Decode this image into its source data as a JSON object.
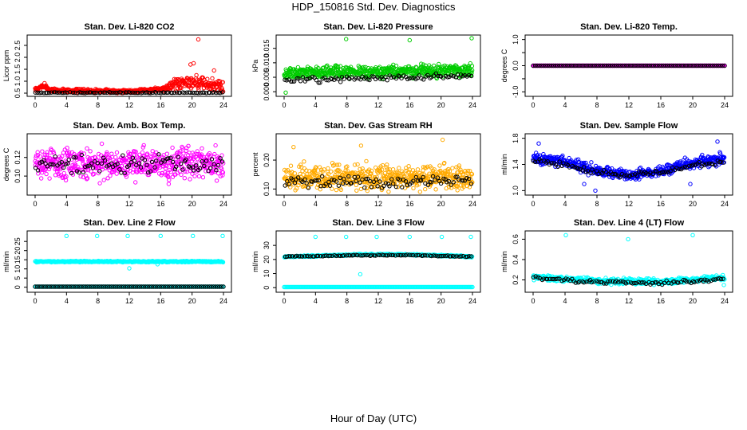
{
  "page": {
    "title": "HDP_150816  Std. Dev. Diagnostics",
    "xlabel": "Hour of Day (UTC)"
  },
  "chart_data": [
    {
      "type": "scatter",
      "title": "Stan. Dev. Li-820 CO2",
      "ylabel": "Licor ppm",
      "xlim": [
        0,
        24
      ],
      "ylim": [
        0.5,
        2.8
      ],
      "xticks": [
        0,
        4,
        8,
        12,
        16,
        20,
        24
      ],
      "yticks": [
        0.5,
        1.0,
        1.5,
        2.0,
        2.5
      ],
      "ytick_labels": [
        "0.5",
        "1.0",
        "1.5",
        "2.0",
        "2.5"
      ],
      "series": [
        {
          "color": "#ff0000",
          "pattern": {
            "kind": "band",
            "n": 520,
            "base": [
              [
                0,
                0.62
              ],
              [
                1,
                0.8
              ],
              [
                2,
                0.62
              ],
              [
                12,
                0.58
              ],
              [
                16,
                0.66
              ],
              [
                18,
                0.9
              ],
              [
                20,
                1.0
              ],
              [
                22,
                0.85
              ],
              [
                24,
                0.8
              ]
            ],
            "spread": [
              [
                0,
                0.12
              ],
              [
                16,
                0.1
              ],
              [
                18,
                0.4
              ],
              [
                24,
                0.45
              ]
            ]
          },
          "extra": [
            [
              20.8,
              2.75
            ],
            [
              20.2,
              1.75
            ],
            [
              19.8,
              1.7
            ],
            [
              18.4,
              1.05
            ],
            [
              22.8,
              1.45
            ],
            [
              1.2,
              0.92
            ]
          ]
        },
        {
          "color": "#000000",
          "pattern": {
            "kind": "band",
            "n": 95,
            "base": [
              [
                0,
                0.52
              ],
              [
                24,
                0.52
              ]
            ],
            "spread": [
              [
                0,
                0.03
              ],
              [
                24,
                0.03
              ]
            ]
          }
        }
      ]
    },
    {
      "type": "scatter",
      "title": "Stan. Dev. Li-820 Pressure",
      "ylabel": "kPa",
      "xlim": [
        0,
        24
      ],
      "ylim": [
        -0.0005,
        0.0185
      ],
      "xticks": [
        0,
        4,
        8,
        12,
        16,
        20,
        24
      ],
      "yticks": [
        0.0,
        0.005,
        0.01,
        0.015
      ],
      "ytick_labels": [
        "0.000",
        "0.005",
        "0.010",
        "0.015"
      ],
      "series": [
        {
          "color": "#00cc00",
          "pattern": {
            "kind": "band",
            "n": 560,
            "base": [
              [
                0,
                0.0065
              ],
              [
                24,
                0.0075
              ]
            ],
            "spread": [
              [
                0,
                0.003
              ],
              [
                24,
                0.003
              ]
            ]
          },
          "extra": [
            [
              7.9,
              0.0182
            ],
            [
              16.0,
              0.0178
            ],
            [
              23.9,
              0.0185
            ],
            [
              0.2,
              -0.0003
            ]
          ]
        },
        {
          "color": "#000000",
          "pattern": {
            "kind": "band",
            "n": 95,
            "base": [
              [
                0,
                0.004
              ],
              [
                24,
                0.0055
              ]
            ],
            "spread": [
              [
                0,
                0.0015
              ],
              [
                24,
                0.0015
              ]
            ]
          }
        }
      ]
    },
    {
      "type": "scatter",
      "title": "Stan. Dev. Li-820 Temp.",
      "ylabel": "degrees C",
      "xlim": [
        0,
        24
      ],
      "ylim": [
        -1.05,
        1.05
      ],
      "xticks": [
        0,
        4,
        8,
        12,
        16,
        20,
        24
      ],
      "yticks": [
        -1.0,
        -0.5,
        0.0,
        0.5,
        1.0
      ],
      "ytick_labels": [
        "-1.0",
        "",
        "0.0",
        "",
        "1.0"
      ],
      "series": [
        {
          "color": "#ff00ff",
          "pattern": {
            "kind": "line",
            "n": 290,
            "y": 0.0
          }
        },
        {
          "color": "#000000",
          "pattern": {
            "kind": "line",
            "n": 95,
            "y": 0.0
          }
        }
      ]
    },
    {
      "type": "scatter",
      "title": "Stan. Dev. Amb. Box Temp.",
      "ylabel": "degrees C",
      "xlim": [
        0,
        24
      ],
      "ylim": [
        0.083,
        0.142
      ],
      "xticks": [
        0,
        4,
        8,
        12,
        16,
        20,
        24
      ],
      "yticks": [
        0.1,
        0.12
      ],
      "ytick_labels": [
        "0.10",
        "0.12"
      ],
      "series": [
        {
          "color": "#ff00ff",
          "pattern": {
            "kind": "band",
            "n": 560,
            "base": [
              [
                0,
                0.113
              ],
              [
                24,
                0.113
              ]
            ],
            "spread": [
              [
                0,
                0.024
              ],
              [
                24,
                0.024
              ]
            ]
          }
        },
        {
          "color": "#000000",
          "pattern": {
            "kind": "band",
            "n": 95,
            "base": [
              [
                0,
                0.113
              ],
              [
                24,
                0.113
              ]
            ],
            "spread": [
              [
                0,
                0.016
              ],
              [
                24,
                0.016
              ]
            ]
          }
        }
      ]
    },
    {
      "type": "scatter",
      "title": "Stan. Dev. Gas Stream RH",
      "ylabel": "percent",
      "xlim": [
        0,
        24
      ],
      "ylim": [
        0.09,
        0.28
      ],
      "xticks": [
        0,
        4,
        8,
        12,
        16,
        20,
        24
      ],
      "yticks": [
        0.1,
        0.2
      ],
      "ytick_labels": [
        "0.10",
        "0.20"
      ],
      "series": [
        {
          "color": "#ffaa00",
          "pattern": {
            "kind": "band",
            "n": 560,
            "base": [
              [
                0,
                0.14
              ],
              [
                24,
                0.14
              ]
            ],
            "spread": [
              [
                0,
                0.06
              ],
              [
                24,
                0.06
              ]
            ]
          },
          "extra": [
            [
              20.2,
              0.27
            ],
            [
              1.2,
              0.245
            ],
            [
              9.8,
              0.25
            ]
          ]
        },
        {
          "color": "#000000",
          "pattern": {
            "kind": "band",
            "n": 95,
            "base": [
              [
                0,
                0.125
              ],
              [
                24,
                0.13
              ]
            ],
            "spread": [
              [
                0,
                0.03
              ],
              [
                24,
                0.03
              ]
            ]
          }
        }
      ]
    },
    {
      "type": "scatter",
      "title": "Stan. Dev. Sample Flow",
      "ylabel": "ml/min",
      "xlim": [
        0,
        24
      ],
      "ylim": [
        0.98,
        1.82
      ],
      "xticks": [
        0,
        4,
        8,
        12,
        16,
        20,
        24
      ],
      "yticks": [
        1.0,
        1.4,
        1.8
      ],
      "ytick_labels": [
        "1.0",
        "1.4",
        "1.8"
      ],
      "series": [
        {
          "color": "#0000ff",
          "pattern": {
            "kind": "band",
            "n": 560,
            "base": [
              [
                0,
                1.5
              ],
              [
                4,
                1.45
              ],
              [
                8,
                1.3
              ],
              [
                12,
                1.24
              ],
              [
                16,
                1.3
              ],
              [
                20,
                1.42
              ],
              [
                24,
                1.5
              ]
            ],
            "spread": [
              [
                0,
                0.12
              ],
              [
                24,
                0.12
              ]
            ]
          },
          "extra": [
            [
              7.8,
              1.0
            ],
            [
              0.7,
              1.72
            ],
            [
              23.1,
              1.75
            ],
            [
              19.7,
              1.1
            ],
            [
              6.4,
              1.1
            ]
          ]
        },
        {
          "color": "#000000",
          "pattern": {
            "kind": "band",
            "n": 95,
            "base": [
              [
                0,
                1.45
              ],
              [
                4,
                1.4
              ],
              [
                8,
                1.28
              ],
              [
                12,
                1.24
              ],
              [
                16,
                1.28
              ],
              [
                20,
                1.38
              ],
              [
                24,
                1.45
              ]
            ],
            "spread": [
              [
                0,
                0.06
              ],
              [
                24,
                0.06
              ]
            ]
          }
        }
      ]
    },
    {
      "type": "scatter",
      "title": "Stan. Dev. Line 2 Flow",
      "ylabel": "ml/min",
      "xlim": [
        0,
        24
      ],
      "ylim": [
        -1,
        29
      ],
      "xticks": [
        0,
        4,
        8,
        12,
        16,
        20,
        24
      ],
      "yticks": [
        0,
        5,
        10,
        15,
        20,
        25
      ],
      "ytick_labels": [
        "0",
        "5",
        "10",
        "15",
        "20",
        "25"
      ],
      "series": [
        {
          "color": "#00ffff",
          "pattern": {
            "kind": "band",
            "n": 430,
            "base": [
              [
                0,
                14
              ],
              [
                24,
                14
              ]
            ],
            "spread": [
              [
                0,
                0.5
              ],
              [
                24,
                0.5
              ]
            ]
          },
          "extra": [
            [
              4.0,
              28
            ],
            [
              7.9,
              28
            ],
            [
              11.8,
              28
            ],
            [
              16.0,
              28
            ],
            [
              20.1,
              28
            ],
            [
              23.9,
              28
            ],
            [
              12.0,
              10.3
            ],
            [
              15.6,
              12.5
            ]
          ]
        },
        {
          "color": "#00ffff",
          "pattern": {
            "kind": "line",
            "n": 200,
            "y": 0.3
          }
        },
        {
          "color": "#000000",
          "pattern": {
            "kind": "line",
            "n": 95,
            "y": 0.3
          }
        }
      ]
    },
    {
      "type": "scatter",
      "title": "Stan. Dev. Line 3 Flow",
      "ylabel": "ml/min",
      "xlim": [
        0,
        24
      ],
      "ylim": [
        -1,
        38
      ],
      "xticks": [
        0,
        4,
        8,
        12,
        16,
        20,
        24
      ],
      "yticks": [
        0,
        10,
        20,
        30
      ],
      "ytick_labels": [
        "0",
        "10",
        "20",
        "30"
      ],
      "series": [
        {
          "color": "#00ffff",
          "pattern": {
            "kind": "band",
            "n": 380,
            "base": [
              [
                0,
                22
              ],
              [
                10,
                23.5
              ],
              [
                16,
                23.5
              ],
              [
                24,
                22
              ]
            ],
            "spread": [
              [
                0,
                0.8
              ],
              [
                24,
                0.8
              ]
            ]
          },
          "extra": [
            [
              4.0,
              36
            ],
            [
              7.9,
              36
            ],
            [
              11.8,
              36
            ],
            [
              16.0,
              36
            ],
            [
              20.1,
              36
            ],
            [
              23.8,
              36
            ],
            [
              9.7,
              9.5
            ]
          ]
        },
        {
          "color": "#00ffff",
          "pattern": {
            "kind": "line",
            "n": 200,
            "y": 0.4
          }
        },
        {
          "color": "#000000",
          "pattern": {
            "kind": "band",
            "n": 95,
            "base": [
              [
                0,
                22
              ],
              [
                10,
                23
              ],
              [
                16,
                23
              ],
              [
                24,
                22
              ]
            ],
            "spread": [
              [
                0,
                0.5
              ],
              [
                24,
                0.5
              ]
            ]
          }
        }
      ]
    },
    {
      "type": "scatter",
      "title": "Stan. Dev. Line 4 (LT) Flow",
      "ylabel": "ml/min",
      "xlim": [
        0,
        24
      ],
      "ylim": [
        0.11,
        0.65
      ],
      "xticks": [
        0,
        4,
        8,
        12,
        16,
        20,
        24
      ],
      "yticks": [
        0.2,
        0.4,
        0.6
      ],
      "ytick_labels": [
        "0.2",
        "0.4",
        "0.6"
      ],
      "series": [
        {
          "color": "#00ffff",
          "pattern": {
            "kind": "band",
            "n": 520,
            "base": [
              [
                0,
                0.23
              ],
              [
                8,
                0.19
              ],
              [
                16,
                0.18
              ],
              [
                24,
                0.22
              ]
            ],
            "spread": [
              [
                0,
                0.04
              ],
              [
                24,
                0.04
              ]
            ]
          },
          "extra": [
            [
              4.1,
              0.64
            ],
            [
              11.9,
              0.6
            ],
            [
              20.0,
              0.64
            ],
            [
              23.9,
              0.15
            ]
          ]
        },
        {
          "color": "#000000",
          "pattern": {
            "kind": "band",
            "n": 95,
            "base": [
              [
                0,
                0.22
              ],
              [
                8,
                0.18
              ],
              [
                16,
                0.17
              ],
              [
                24,
                0.21
              ]
            ],
            "spread": [
              [
                0,
                0.025
              ],
              [
                24,
                0.025
              ]
            ]
          }
        }
      ]
    }
  ]
}
